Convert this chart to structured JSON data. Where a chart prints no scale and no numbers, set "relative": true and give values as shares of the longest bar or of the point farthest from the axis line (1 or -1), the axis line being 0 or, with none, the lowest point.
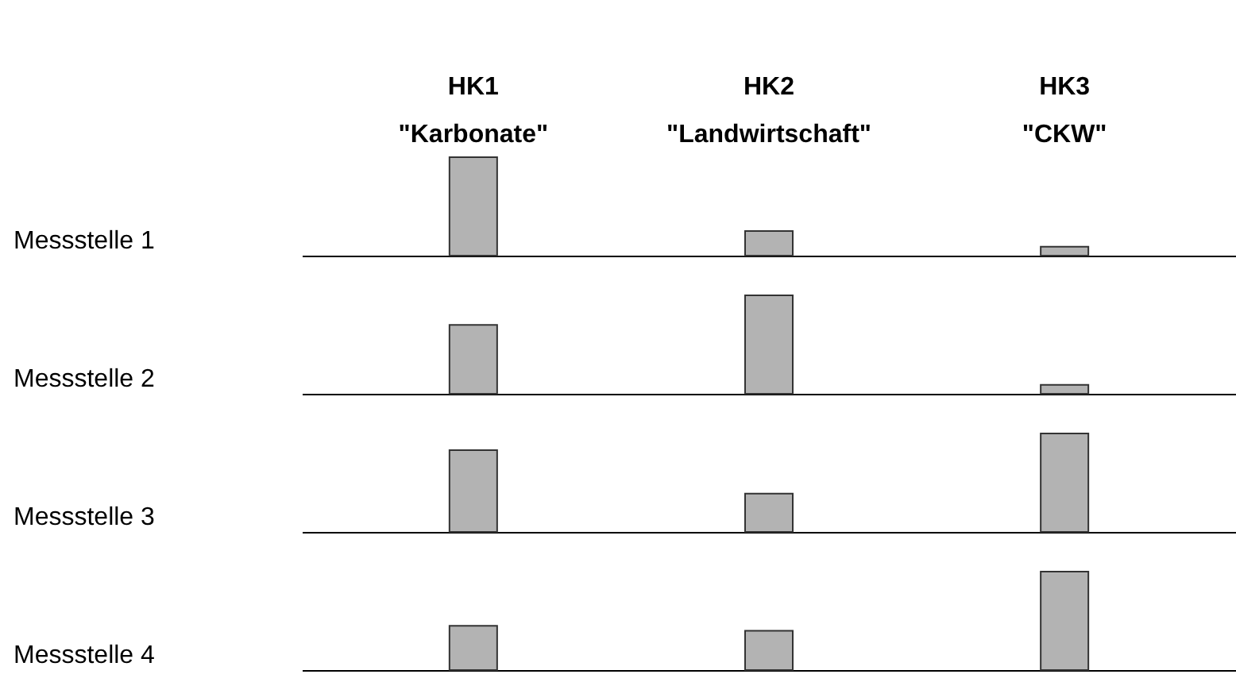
{
  "chart_data": [
    {
      "type": "bar",
      "title": "Messstelle 1",
      "categories": [
        "HK1\n\"Karbonate\"",
        "HK2\n\"Landwirtschaft\"",
        "HK3\n\"CKW\""
      ],
      "values": [
        1,
        0.25,
        0.09
      ],
      "color": "#b3b3b3",
      "relative": true
    },
    {
      "type": "bar",
      "title": "Messstelle 2",
      "categories": [
        null,
        null,
        null
      ],
      "values": [
        0.7,
        1,
        0.09
      ],
      "color": "#b3b3b3",
      "relative": true
    },
    {
      "type": "bar",
      "title": "Messstelle 3",
      "categories": [
        null,
        null,
        null
      ],
      "values": [
        0.83,
        0.39,
        1
      ],
      "color": "#b3b3b3",
      "relative": true
    },
    {
      "type": "bar",
      "title": "Messstelle 4",
      "categories": [
        null,
        null,
        null
      ],
      "values": [
        0.45,
        0.4,
        1
      ],
      "color": "#b3b3b3",
      "relative": true
    }
  ]
}
